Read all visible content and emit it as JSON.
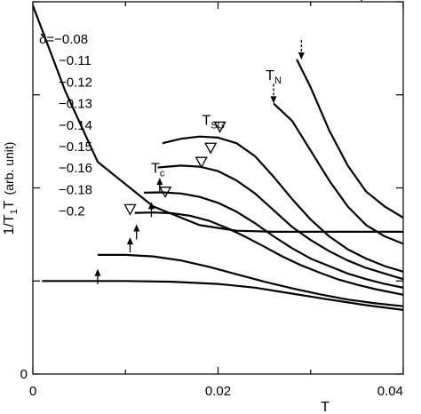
{
  "chart_data": {
    "type": "line",
    "title": "",
    "xlabel": "T",
    "ylabel": {
      "main": "1/T",
      "sub": "1",
      "tail": "T",
      "unit": "(arb. unit)"
    },
    "xlim": [
      0,
      0.04
    ],
    "ylim": [
      0,
      1.0
    ],
    "x_ticks": [
      0,
      0.02,
      0.04
    ],
    "x_tick_labels": [
      "0",
      "0.02",
      "0.04"
    ],
    "y_ticks": [
      0,
      0.25,
      0.5,
      0.75,
      1.0
    ],
    "y_tick_labels": [
      "0",
      "",
      "",
      "",
      ""
    ],
    "legend_prefix": "δ=",
    "series": [
      {
        "name": "−0.08",
        "x": [
          0.0,
          0.0035,
          0.007,
          0.013,
          0.018,
          0.022,
          0.026,
          0.03,
          0.034,
          0.038,
          0.04
        ],
        "y": [
          0.99,
          0.76,
          0.57,
          0.45,
          0.4,
          0.385,
          0.382,
          0.382,
          0.382,
          0.382,
          0.382
        ]
      },
      {
        "name": "−0.11",
        "x": [
          0.0285,
          0.03,
          0.032,
          0.034,
          0.036,
          0.038,
          0.04
        ],
        "y": [
          0.845,
          0.77,
          0.655,
          0.56,
          0.49,
          0.45,
          0.42
        ]
      },
      {
        "name": "−0.12",
        "x": [
          0.026,
          0.028,
          0.03,
          0.032,
          0.034,
          0.036,
          0.038,
          0.04
        ],
        "y": [
          0.727,
          0.68,
          0.6,
          0.52,
          0.45,
          0.4,
          0.37,
          0.35
        ]
      },
      {
        "name": "−0.13",
        "x": [
          0.014,
          0.016,
          0.018,
          0.02,
          0.022,
          0.024,
          0.026,
          0.028,
          0.03,
          0.032,
          0.034,
          0.036,
          0.038,
          0.04
        ],
        "y": [
          0.62,
          0.632,
          0.638,
          0.635,
          0.62,
          0.585,
          0.53,
          0.47,
          0.415,
          0.37,
          0.335,
          0.31,
          0.29,
          0.275
        ]
      },
      {
        "name": "−0.14",
        "x": [
          0.0135,
          0.016,
          0.018,
          0.02,
          0.022,
          0.024,
          0.026,
          0.028,
          0.03,
          0.032,
          0.034,
          0.036,
          0.038,
          0.04
        ],
        "y": [
          0.555,
          0.56,
          0.557,
          0.545,
          0.52,
          0.485,
          0.44,
          0.395,
          0.36,
          0.33,
          0.305,
          0.285,
          0.27,
          0.255
        ]
      },
      {
        "name": "−0.15",
        "x": [
          0.012,
          0.014,
          0.016,
          0.018,
          0.02,
          0.022,
          0.024,
          0.026,
          0.028,
          0.03,
          0.032,
          0.034,
          0.036,
          0.038,
          0.04
        ],
        "y": [
          0.487,
          0.488,
          0.485,
          0.476,
          0.46,
          0.436,
          0.405,
          0.37,
          0.338,
          0.31,
          0.29,
          0.27,
          0.255,
          0.242,
          0.232
        ]
      },
      {
        "name": "−0.16",
        "x": [
          0.011,
          0.013,
          0.015,
          0.017,
          0.019,
          0.021,
          0.023,
          0.025,
          0.027,
          0.029,
          0.031,
          0.033,
          0.035,
          0.037,
          0.04
        ],
        "y": [
          0.433,
          0.434,
          0.432,
          0.425,
          0.412,
          0.392,
          0.368,
          0.342,
          0.315,
          0.292,
          0.272,
          0.254,
          0.24,
          0.228,
          0.213
        ]
      },
      {
        "name": "−0.18",
        "x": [
          0.007,
          0.01,
          0.013,
          0.016,
          0.019,
          0.022,
          0.025,
          0.028,
          0.031,
          0.034,
          0.037,
          0.04
        ],
        "y": [
          0.32,
          0.32,
          0.316,
          0.305,
          0.288,
          0.268,
          0.248,
          0.23,
          0.214,
          0.2,
          0.19,
          0.182
        ]
      },
      {
        "name": "−0.2",
        "x": [
          0.001,
          0.005,
          0.01,
          0.015,
          0.02,
          0.024,
          0.028,
          0.032,
          0.036,
          0.04
        ],
        "y": [
          0.25,
          0.25,
          0.25,
          0.248,
          0.242,
          0.232,
          0.216,
          0.2,
          0.185,
          0.172
        ]
      }
    ],
    "annotations": [
      {
        "label": "T_c",
        "x": 0.0135,
        "y": 0.54
      },
      {
        "label": "T_SG",
        "x": 0.0195,
        "y": 0.67
      },
      {
        "label": "T_N",
        "x": 0.026,
        "y": 0.79
      }
    ],
    "solid_arrows_x_y": [
      [
        0.007,
        0.275
      ],
      [
        0.0105,
        0.36
      ],
      [
        0.0112,
        0.395
      ],
      [
        0.0128,
        0.455
      ],
      [
        0.0137,
        0.52
      ]
    ],
    "dashed_arrows_x_y": [
      [
        0.026,
        0.727
      ],
      [
        0.029,
        0.845
      ],
      [
        0.0355,
        1.0
      ]
    ],
    "triangle_markers_x_y": [
      [
        0.0105,
        0.443
      ],
      [
        0.0143,
        0.49
      ],
      [
        0.0182,
        0.57
      ],
      [
        0.0192,
        0.608
      ],
      [
        0.0202,
        0.665
      ]
    ]
  }
}
